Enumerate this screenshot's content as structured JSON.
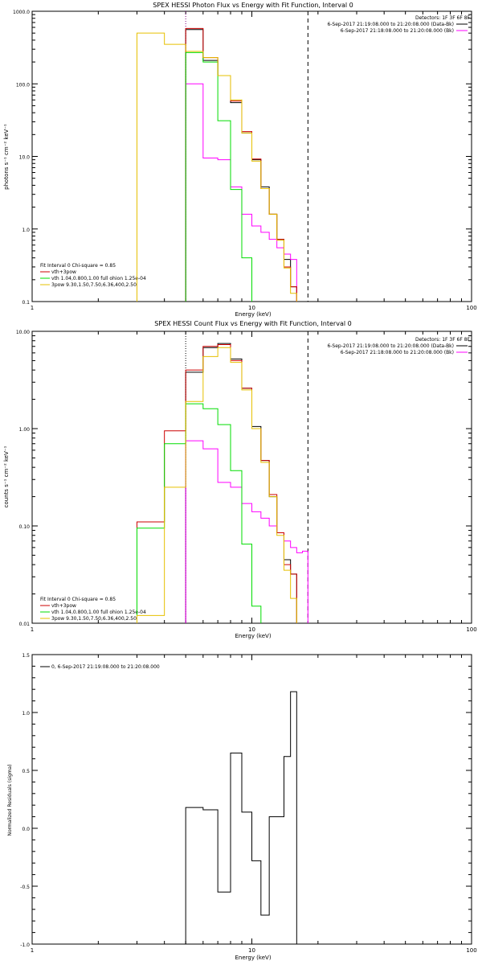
{
  "chart_data": [
    {
      "type": "line",
      "title": "SPEX HESSI Photon Flux vs Energy with Fit Function, Interval 0",
      "xlabel": "Energy (keV)",
      "ylabel": "photons s⁻¹ cm⁻² keV⁻¹",
      "xscale": "log",
      "yscale": "log",
      "xlim": [
        1,
        100
      ],
      "ylim": [
        0.1,
        1000
      ],
      "x_tick_labels": [
        "1",
        "10",
        "100"
      ],
      "y_tick_labels": [
        "1000.0",
        "100.0",
        "10.0",
        "1.0",
        "0.1"
      ],
      "info_lines": [
        "Detectors: 1F 3F 6F 8F",
        "6-Sep-2017 21:19:08.000 to 21:20:08.000 (Data-Bk)",
        "6-Sep-2017 21:18:08.000 to 21:20:08.000 (Bk)"
      ],
      "legend_title": "Fit Interval  0   Chi-square = 0.85",
      "edges": [
        3.0,
        4.0,
        5.0,
        6.0,
        7.0,
        8.0,
        9.0,
        10.0,
        11.0,
        12.0,
        13.0,
        14.0,
        15.0,
        16.0,
        17.0,
        18.0
      ],
      "vertical_markers": [
        {
          "x": 5.0,
          "style": "dotted",
          "color": "#800080"
        },
        {
          "x": 18.0,
          "style": "dashed",
          "color": "#000000"
        }
      ],
      "series": [
        {
          "name": "",
          "color": "#000000",
          "values": [
            null,
            null,
            560,
            210,
            130,
            55,
            21,
            9.0,
            3.8,
            1.6,
            0.72,
            0.38,
            0.16,
            null,
            null
          ]
        },
        {
          "name": "",
          "color": "#ff00ff",
          "values": [
            null,
            null,
            100,
            9.5,
            9.0,
            3.8,
            1.6,
            1.1,
            0.9,
            0.72,
            0.55,
            0.45,
            0.38,
            null,
            null
          ]
        },
        {
          "name": "vth+3pow",
          "color": "#cc0000",
          "values": [
            null,
            null,
            580,
            230,
            130,
            58,
            22,
            9.2,
            3.6,
            1.6,
            0.72,
            0.3,
            0.16,
            null,
            null
          ]
        },
        {
          "name": "vth 1.04,0.800,1.00  full ohion 1.25e-04",
          "color": "#00dd00",
          "values": [
            null,
            null,
            270,
            200,
            31,
            3.5,
            0.4,
            null,
            null,
            null,
            null,
            null,
            null,
            null,
            null
          ]
        },
        {
          "name": "3pow 9.30,1.50,7.50,6.36,400,2.50",
          "color": "#e6c000",
          "values": [
            500,
            350,
            280,
            230,
            130,
            60,
            21,
            8.6,
            3.6,
            1.6,
            0.7,
            0.29,
            0.13,
            null,
            null
          ]
        }
      ]
    },
    {
      "type": "line",
      "title": "SPEX HESSI Count Flux vs Energy with Fit Function, Interval 0",
      "xlabel": "Energy (keV)",
      "ylabel": "counts s⁻¹ cm⁻² keV⁻¹",
      "xscale": "log",
      "yscale": "log",
      "xlim": [
        1,
        100
      ],
      "ylim": [
        0.01,
        10
      ],
      "x_tick_labels": [
        "1",
        "10",
        "100"
      ],
      "y_tick_labels": [
        "10.00",
        "1.00",
        "0.10",
        "0.01"
      ],
      "info_lines": [
        "Detectors: 1F 3F 6F 8F",
        "6-Sep-2017 21:19:08.000 to 21:20:08.000 (Data-Bk)",
        "6-Sep-2017 21:18:08.000 to 21:20:08.000 (Bk)"
      ],
      "legend_title": "Fit Interval  0   Chi-square = 0.85",
      "edges": [
        3.0,
        4.0,
        5.0,
        6.0,
        7.0,
        8.0,
        9.0,
        10.0,
        11.0,
        12.0,
        13.0,
        14.0,
        15.0,
        16.0,
        17.0,
        18.0
      ],
      "vertical_markers": [
        {
          "x": 5.0,
          "style": "dotted",
          "color": "#000000"
        },
        {
          "x": 18.0,
          "style": "dashed",
          "color": "#000000"
        }
      ],
      "series": [
        {
          "name": "",
          "color": "#000000",
          "values": [
            null,
            null,
            3.8,
            6.8,
            7.5,
            5.2,
            2.6,
            1.05,
            0.47,
            0.2,
            0.085,
            0.045,
            0.032,
            null,
            null
          ]
        },
        {
          "name": "",
          "color": "#ff00ff",
          "values": [
            null,
            null,
            0.75,
            0.62,
            0.28,
            0.25,
            0.17,
            0.14,
            0.12,
            0.1,
            0.085,
            0.07,
            0.06,
            0.053,
            0.055
          ]
        },
        {
          "name": "vth+3pow",
          "color": "#cc0000",
          "values": [
            0.11,
            0.95,
            4.0,
            7.0,
            7.3,
            5.0,
            2.6,
            1.0,
            0.47,
            0.21,
            0.085,
            0.04,
            0.032,
            null,
            null
          ]
        },
        {
          "name": "vth 1.04,0.800,1.00  full ohion 1.25e-04",
          "color": "#00dd00",
          "values": [
            0.095,
            0.7,
            1.8,
            1.6,
            1.1,
            0.37,
            0.065,
            0.015,
            null,
            null,
            null,
            null,
            null,
            null,
            null
          ]
        },
        {
          "name": "3pow 9.30,1.50,7.50,6.36,400,2.50",
          "color": "#e6c000",
          "values": [
            0.012,
            0.25,
            1.9,
            5.5,
            6.8,
            4.8,
            2.5,
            1.0,
            0.45,
            0.2,
            0.08,
            0.035,
            0.018,
            null,
            null
          ]
        }
      ]
    },
    {
      "type": "line",
      "title": "",
      "xlabel": "Energy (keV)",
      "ylabel": "Normalized Residuals (sigma)",
      "xscale": "log",
      "xlim": [
        1,
        100
      ],
      "ylim": [
        -1.0,
        1.5
      ],
      "x_tick_labels": [
        "1",
        "10",
        "100"
      ],
      "y_tick_labels": [
        "1.5",
        "1.0",
        "0.5",
        "0.0",
        "-0.5",
        "-1.0"
      ],
      "legend": "0,  6-Sep-2017 21:19:08.000 to 21:20:08.000",
      "edges": [
        5.0,
        6.0,
        7.0,
        8.0,
        9.0,
        10.0,
        11.0,
        12.0,
        13.0,
        14.0,
        15.0,
        16.0,
        17.0,
        18.0
      ],
      "series": [
        {
          "name": "",
          "color": "#000000",
          "values": [
            0.18,
            0.16,
            -0.55,
            0.65,
            0.14,
            -0.28,
            -0.75,
            0.1,
            0.1,
            0.62,
            1.18,
            null,
            null
          ]
        }
      ]
    }
  ]
}
